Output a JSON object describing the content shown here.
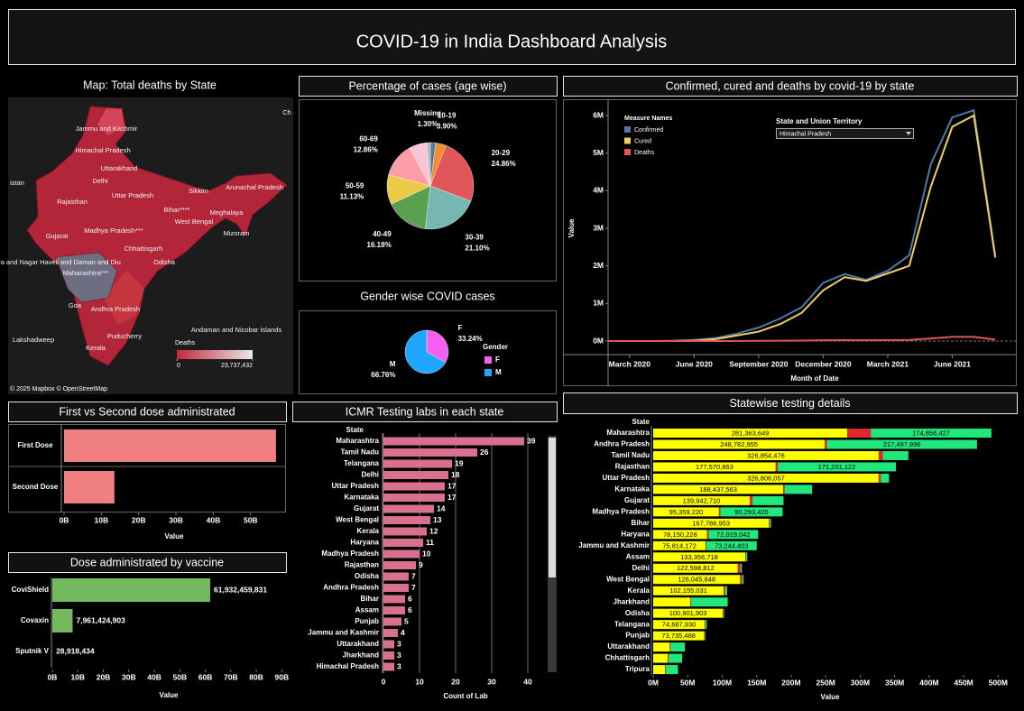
{
  "title": "COVID-19 in India Dashboard Analysis",
  "map": {
    "title": "Map: Total deaths by State",
    "labels": [
      "Jammu and Kashmir",
      "Himachal Pradesh",
      "Uttarakhand",
      "Delhi",
      "Uttar Pradesh",
      "Rajasthan",
      "Sikkim",
      "Arunachal Pradesh",
      "Bihar****",
      "Meghalaya",
      "West Bengal",
      "Gujarat",
      "Madhya Pradesh***",
      "Chhattisgarh",
      "Mizoram",
      "Odisha",
      "ra and Nagar Haveli and Daman and Diu",
      "Maharashtra***",
      "Goa",
      "Andhra Pradesh",
      "Puducherry",
      "Andaman and Nicobar Islands",
      "Lakshadweep",
      "Kerala",
      "istan",
      "Ch"
    ],
    "legend_title": "Deaths",
    "legend_ticks": [
      0,
      {
        "value": 23737432,
        "label": "23,737,432"
      }
    ],
    "attribution": "© 2025 Mapbox © OpenStreetMap"
  },
  "chart_data": [
    {
      "type": "pie",
      "title": "Percentage of cases (age wise)",
      "categories": [
        null,
        "10-19",
        "20-29",
        "30-39",
        "40-49",
        "50-59",
        "60-69",
        null,
        "Missing"
      ],
      "values": [
        2.0,
        3.9,
        24.86,
        21.1,
        16.18,
        11.13,
        12.86,
        6.67,
        1.3
      ],
      "value_labels": [
        null,
        "3.90%",
        "24.86%",
        "21.10%",
        "16.18%",
        "11.13%",
        "12.86%",
        null,
        "1.30%"
      ],
      "colors": [
        "#4e79a7",
        "#f28e2b",
        "#e15759",
        "#76b7b2",
        "#59a14f",
        "#edc948",
        "#ff9da7",
        "#f7c6d4",
        "#bab0ac"
      ]
    },
    {
      "type": "pie",
      "title": "Gender wise COVID cases",
      "categories": [
        "F",
        "M"
      ],
      "values": [
        33.24,
        66.76
      ],
      "value_labels": [
        "33.24%",
        "66.76%"
      ],
      "colors": [
        "#f55ff3",
        "#1ea7fd"
      ],
      "legend_title": "Gender"
    },
    {
      "type": "line",
      "title": "Confirmed, cured and deaths by covid-19 by state",
      "x": [
        "2020-02",
        "2020-03",
        "2020-04",
        "2020-05",
        "2020-06",
        "2020-07",
        "2020-08",
        "2020-09",
        "2020-10",
        "2020-11",
        "2020-12",
        "2021-01",
        "2021-02",
        "2021-03",
        "2021-04",
        "2021-05",
        "2021-06",
        "2021-07",
        "2021-08"
      ],
      "series": [
        {
          "name": "Confirmed",
          "color": "#4e79a7",
          "values": [
            0,
            0,
            0,
            10000,
            30000,
            80000,
            200000,
            360000,
            600000,
            900000,
            1550000,
            1780000,
            1630000,
            1870000,
            2280000,
            4700000,
            5950000,
            6140000,
            2280000
          ]
        },
        {
          "name": "Cured",
          "color": "#f1ce63",
          "values": [
            0,
            0,
            0,
            0,
            10000,
            50000,
            150000,
            250000,
            450000,
            750000,
            1350000,
            1700000,
            1600000,
            1800000,
            2000000,
            4100000,
            5700000,
            6000000,
            2220000
          ]
        },
        {
          "name": "Deaths",
          "color": "#e15759",
          "values": [
            0,
            0,
            0,
            0,
            0,
            1000,
            3000,
            6000,
            9000,
            13000,
            20000,
            25000,
            20000,
            25000,
            30000,
            70000,
            110000,
            110000,
            40000
          ]
        }
      ],
      "xlim": [
        "2020-02",
        "2021-09"
      ],
      "xticks": [
        {
          "value": "2020-03",
          "label": "March 2020"
        },
        {
          "value": "2020-06",
          "label": "June 2020"
        },
        {
          "value": "2020-09",
          "label": "September 2020"
        },
        {
          "value": "2020-12",
          "label": "December 2020"
        },
        {
          "value": "2021-03",
          "label": "March 2021"
        },
        {
          "value": "2021-06",
          "label": "June 2021"
        }
      ],
      "ylim": [
        -300000,
        6300000
      ],
      "yticks": [
        {
          "value": 0,
          "label": "0M"
        },
        {
          "value": 1000000,
          "label": "1M"
        },
        {
          "value": 2000000,
          "label": "2M"
        },
        {
          "value": 3000000,
          "label": "3M"
        },
        {
          "value": 4000000,
          "label": "4M"
        },
        {
          "value": 5000000,
          "label": "5M"
        },
        {
          "value": 6000000,
          "label": "6M"
        }
      ],
      "x_label": "Month of Date",
      "y_label": "Value",
      "legend_title": "Measure Names",
      "filter_label": "State and Union Territory",
      "filter_value": "Himachal Pradesh"
    },
    {
      "type": "bar",
      "title": "First vs Second dose administrated",
      "categories": [
        "First Dose",
        "Second Dose"
      ],
      "values": [
        56800000000,
        13500000000
      ],
      "color": "#f08080",
      "xlim": [
        0,
        59000000000
      ],
      "xticks": [
        {
          "value": 0,
          "label": "0B"
        },
        {
          "value": 10000000000,
          "label": "10B"
        },
        {
          "value": 20000000000,
          "label": "20B"
        },
        {
          "value": 30000000000,
          "label": "30B"
        },
        {
          "value": 40000000000,
          "label": "40B"
        },
        {
          "value": 50000000000,
          "label": "50B"
        }
      ],
      "x_label": "Value"
    },
    {
      "type": "bar",
      "title": "Dose administrated by vaccine",
      "categories": [
        "CoviShield",
        "Covaxin",
        "Sputnik V"
      ],
      "values": [
        61932459831,
        7961424903,
        28918434
      ],
      "value_labels": [
        "61,932,459,831",
        "7,961,424,903",
        "28,918,434"
      ],
      "color": "#72b95f",
      "xlim": [
        0,
        92000000000
      ],
      "xticks": [
        {
          "value": 0,
          "label": "0B"
        },
        {
          "value": 10000000000,
          "label": "10B"
        },
        {
          "value": 20000000000,
          "label": "20B"
        },
        {
          "value": 30000000000,
          "label": "30B"
        },
        {
          "value": 40000000000,
          "label": "40B"
        },
        {
          "value": 50000000000,
          "label": "50B"
        },
        {
          "value": 60000000000,
          "label": "60B"
        },
        {
          "value": 70000000000,
          "label": "70B"
        },
        {
          "value": 80000000000,
          "label": "80B"
        },
        {
          "value": 90000000000,
          "label": "90B"
        }
      ],
      "x_label": "Value"
    },
    {
      "type": "bar",
      "title": "ICMR Testing labs in each state",
      "header": "State",
      "categories": [
        "Maharashtra",
        "Tamil Nadu",
        "Telangana",
        "Delhi",
        "Uttar Pradesh",
        "Karnataka",
        "Gujarat",
        "West Bengal",
        "Kerala",
        "Haryana",
        "Madhya Pradesh",
        "Rajasthan",
        "Odisha",
        "Andhra Pradesh",
        "Bihar",
        "Assam",
        "Punjab",
        "Jammu and Kashmir",
        "Uttarakhand",
        "Jharkhand",
        "Himachal Pradesh"
      ],
      "values": [
        39,
        26,
        19,
        18,
        17,
        17,
        14,
        13,
        12,
        11,
        10,
        9,
        7,
        7,
        6,
        6,
        5,
        4,
        3,
        3,
        3
      ],
      "data_labels": true,
      "color": "#d9708f",
      "grid": true,
      "xlim": [
        0,
        45
      ],
      "xticks": [
        0,
        10,
        20,
        30,
        40
      ],
      "x_label": "Count of Lab"
    },
    {
      "type": "stacked_bar",
      "title": "Statewise testing details",
      "header": "State",
      "categories": [
        "Maharashtra",
        "Andhra Pradesh",
        "Tamil Nadu",
        "Rajasthan",
        "Uttar Pradesh",
        "Karnataka",
        "Gujarat",
        "Madhya Pradesh",
        "Bihar",
        "Haryana",
        "Jammu and Kashmir",
        "Assam",
        "Delhi",
        "West Bengal",
        "Kerala",
        "Jharkhand",
        "Odisha",
        "Telangana",
        "Punjab",
        "Uttarakhand",
        "Chhattisgarh",
        "Tripura"
      ],
      "series": [
        {
          "color": "#ffff00",
          "values": [
            281363649,
            248782955,
            326854476,
            177570863,
            326806057,
            188437563,
            139942710,
            95359220,
            167786953,
            78150228,
            75814172,
            133356718,
            122598812,
            126045848,
            102155031,
            54000000,
            100901903,
            74687930,
            73735488,
            24000000,
            21000000,
            17000000
          ],
          "value_labels": [
            "281,363,649",
            "248,782,955",
            "326,854,476",
            "177,570,863",
            "326,806,057",
            "188,437,563",
            "139,942,710",
            "95,359,220",
            "167,786,953",
            "78,150,228",
            "75,814,172",
            "133,356,718",
            "122,598,812",
            "126,045,848",
            "102,155,031",
            null,
            "100,901,903",
            "74,687,930",
            "73,735,488",
            null,
            null,
            null
          ]
        },
        {
          "color": "#e0282f",
          "values": [
            34000000,
            3000000,
            6000000,
            3000000,
            3000000,
            2000000,
            4000000,
            2000000,
            1000000,
            2000000,
            1000000,
            1000000,
            4000000,
            3000000,
            2000000,
            1000000,
            1000000,
            1000000,
            1000000,
            1000000,
            1000000,
            1000000
          ]
        },
        {
          "color": "#22e87c",
          "values": [
            174856427,
            217497996,
            37000000,
            171201122,
            12000000,
            40000000,
            45000000,
            90293420,
            2000000,
            72019042,
            73244403,
            2000000,
            2000000,
            2000000,
            3000000,
            53000000,
            1000000,
            2000000,
            1000000,
            21000000,
            20000000,
            18000000
          ],
          "value_labels": [
            "174,856,427",
            "217,497,996",
            null,
            "171,201,122",
            null,
            null,
            null,
            "90,293,420",
            null,
            "72,019,042",
            "73,244,403",
            null,
            null,
            null,
            null,
            null,
            null,
            null,
            null,
            null,
            null,
            null
          ]
        }
      ],
      "xlim": [
        0,
        527000000
      ],
      "xticks": [
        {
          "value": 0,
          "label": "0M"
        },
        {
          "value": 50000000,
          "label": "50M"
        },
        {
          "value": 100000000,
          "label": "100M"
        },
        {
          "value": 150000000,
          "label": "150M"
        },
        {
          "value": 200000000,
          "label": "200M"
        },
        {
          "value": 250000000,
          "label": "250M"
        },
        {
          "value": 300000000,
          "label": "300M"
        },
        {
          "value": 350000000,
          "label": "350M"
        },
        {
          "value": 400000000,
          "label": "400M"
        },
        {
          "value": 450000000,
          "label": "450M"
        },
        {
          "value": 500000000,
          "label": "500M"
        }
      ],
      "x_label": "Value"
    }
  ]
}
